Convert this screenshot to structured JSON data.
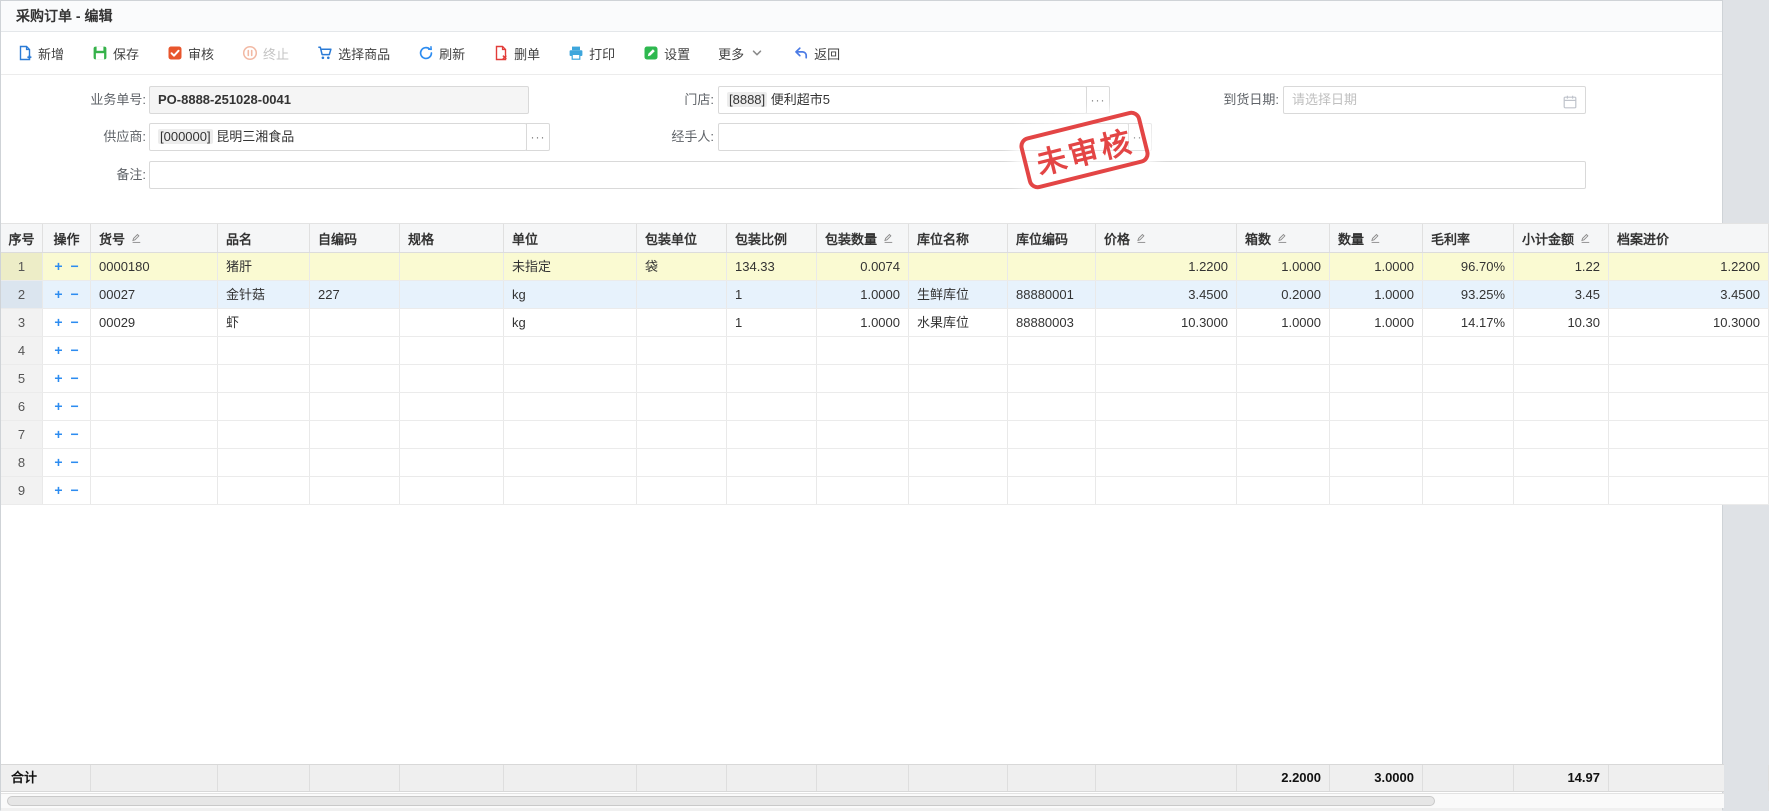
{
  "page": {
    "title": "采购订单 - 编辑"
  },
  "toolbar": {
    "buttons": [
      {
        "id": "new",
        "label": "新增",
        "icon": "file-plus-icon",
        "color": "#2b7bd6",
        "disabled": false
      },
      {
        "id": "save",
        "label": "保存",
        "icon": "save-icon",
        "color": "#36b24a",
        "disabled": false
      },
      {
        "id": "audit",
        "label": "审核",
        "icon": "audit-check-icon",
        "color": "#e8562d",
        "disabled": false
      },
      {
        "id": "terminate",
        "label": "终止",
        "icon": "pause-circle-icon",
        "color": "#f2b9a4",
        "disabled": true
      },
      {
        "id": "select-goods",
        "label": "选择商品",
        "icon": "cart-icon",
        "color": "#2b7bd6",
        "disabled": false
      },
      {
        "id": "refresh",
        "label": "刷新",
        "icon": "refresh-icon",
        "color": "#2d8cf0",
        "disabled": false
      },
      {
        "id": "delete-order",
        "label": "删单",
        "icon": "file-x-icon",
        "color": "#e23c39",
        "disabled": false
      },
      {
        "id": "print",
        "label": "打印",
        "icon": "printer-icon",
        "color": "#3ea6dc",
        "disabled": false
      },
      {
        "id": "settings",
        "label": "设置",
        "icon": "edit-square-icon",
        "color": "#2eb84f",
        "disabled": false
      },
      {
        "id": "more",
        "label": "更多",
        "icon": "chevron-down-icon",
        "color": "#8a8a8a",
        "disabled": false,
        "trailing": true
      },
      {
        "id": "back",
        "label": "返回",
        "icon": "back-arrow-icon",
        "color": "#4b7be5",
        "disabled": false
      }
    ]
  },
  "form": {
    "order_no": {
      "label": "业务单号:",
      "value": "PO-8888-251028-0041"
    },
    "store": {
      "label": "门店:",
      "code": "[8888]",
      "name": "便利超市5"
    },
    "arrival_date": {
      "label": "到货日期:",
      "placeholder": "请选择日期"
    },
    "supplier": {
      "label": "供应商:",
      "code": "[000000]",
      "name": "昆明三湘食品"
    },
    "handler": {
      "label": "经手人:",
      "value": ""
    },
    "remark": {
      "label": "备注:",
      "value": ""
    },
    "browse_glyph": "···"
  },
  "stamp": {
    "text": "未审核",
    "color": "#e34545"
  },
  "table": {
    "columns": [
      {
        "key": "seq",
        "label": "序号",
        "width": 42,
        "align": "center",
        "editable": false
      },
      {
        "key": "op",
        "label": "操作",
        "width": 48,
        "align": "center",
        "editable": false
      },
      {
        "key": "item_no",
        "label": "货号",
        "width": 127,
        "align": "left",
        "editable": true
      },
      {
        "key": "name",
        "label": "品名",
        "width": 92,
        "align": "left",
        "editable": false
      },
      {
        "key": "self_code",
        "label": "自编码",
        "width": 90,
        "align": "left",
        "editable": false
      },
      {
        "key": "spec",
        "label": "规格",
        "width": 104,
        "align": "left",
        "editable": false
      },
      {
        "key": "unit",
        "label": "单位",
        "width": 133,
        "align": "left",
        "editable": false
      },
      {
        "key": "pack_unit",
        "label": "包装单位",
        "width": 90,
        "align": "left",
        "editable": false
      },
      {
        "key": "pack_ratio",
        "label": "包装比例",
        "width": 90,
        "align": "left",
        "editable": false
      },
      {
        "key": "pack_qty",
        "label": "包装数量",
        "width": 92,
        "align": "right",
        "editable": true
      },
      {
        "key": "loc_name",
        "label": "库位名称",
        "width": 99,
        "align": "left",
        "editable": false
      },
      {
        "key": "loc_code",
        "label": "库位编码",
        "width": 88,
        "align": "left",
        "editable": false
      },
      {
        "key": "price",
        "label": "价格",
        "width": 141,
        "align": "right",
        "editable": true
      },
      {
        "key": "boxes",
        "label": "箱数",
        "width": 93,
        "align": "right",
        "editable": true
      },
      {
        "key": "qty",
        "label": "数量",
        "width": 93,
        "align": "right",
        "editable": true
      },
      {
        "key": "margin",
        "label": "毛利率",
        "width": 91,
        "align": "right",
        "editable": false
      },
      {
        "key": "subtotal",
        "label": "小计金额",
        "width": 95,
        "align": "right",
        "editable": true
      },
      {
        "key": "archive_price",
        "label": "档案进价",
        "width": 160,
        "align": "right",
        "editable": false
      }
    ],
    "op": {
      "add": "+",
      "remove": "−"
    },
    "rows": [
      {
        "seq": "1",
        "item_no": "0000180",
        "name": "猪肝",
        "self_code": "",
        "spec": "",
        "unit": "未指定",
        "pack_unit": "袋",
        "pack_ratio": "134.33",
        "pack_qty": "0.0074",
        "loc_name": "",
        "loc_code": "",
        "price": "1.2200",
        "boxes": "1.0000",
        "qty": "1.0000",
        "margin": "96.70%",
        "subtotal": "1.22",
        "archive_price": "1.2200",
        "highlight": "yellow"
      },
      {
        "seq": "2",
        "item_no": "00027",
        "name": "金针菇",
        "self_code": "227",
        "spec": "",
        "unit": "kg",
        "pack_unit": "",
        "pack_ratio": "1",
        "pack_qty": "1.0000",
        "loc_name": "生鲜库位",
        "loc_code": "88880001",
        "price": "3.4500",
        "boxes": "0.2000",
        "qty": "1.0000",
        "margin": "93.25%",
        "subtotal": "3.45",
        "archive_price": "3.4500",
        "highlight": "blue"
      },
      {
        "seq": "3",
        "item_no": "00029",
        "name": "虾",
        "self_code": "",
        "spec": "",
        "unit": "kg",
        "pack_unit": "",
        "pack_ratio": "1",
        "pack_qty": "1.0000",
        "loc_name": "水果库位",
        "loc_code": "88880003",
        "price": "10.3000",
        "boxes": "1.0000",
        "qty": "1.0000",
        "margin": "14.17%",
        "subtotal": "10.30",
        "archive_price": "10.3000",
        "highlight": ""
      }
    ],
    "empty_seq": [
      "4",
      "5",
      "6",
      "7",
      "8",
      "9"
    ],
    "totals": {
      "label": "合计",
      "boxes": "2.2000",
      "qty": "3.0000",
      "subtotal": "14.97"
    }
  }
}
